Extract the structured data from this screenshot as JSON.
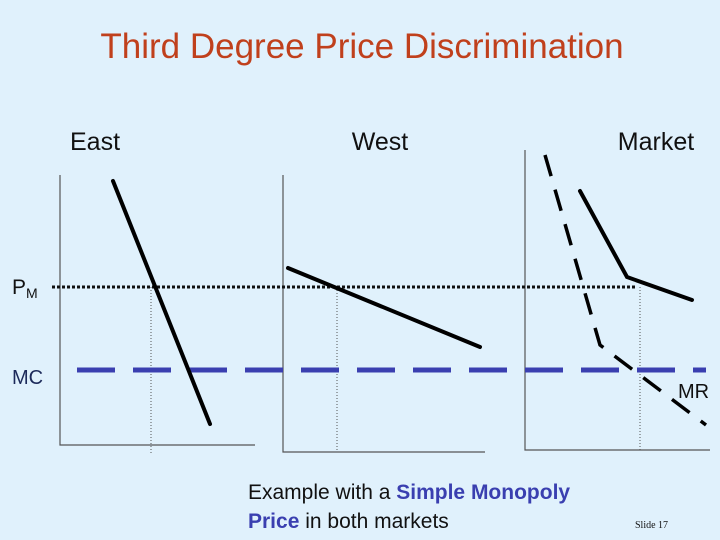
{
  "title": "Third Degree Price Discrimination",
  "panels": [
    "East",
    "West",
    "Market"
  ],
  "labels": {
    "pm": {
      "letter": "P",
      "subscript": "M"
    },
    "mc": "MC",
    "mr": "MR"
  },
  "caption": {
    "lines": [
      [
        "Example with a",
        "Simple Monopoly"
      ],
      [
        "Price",
        "in both markets"
      ]
    ]
  },
  "slide_number": "Slide 17"
}
